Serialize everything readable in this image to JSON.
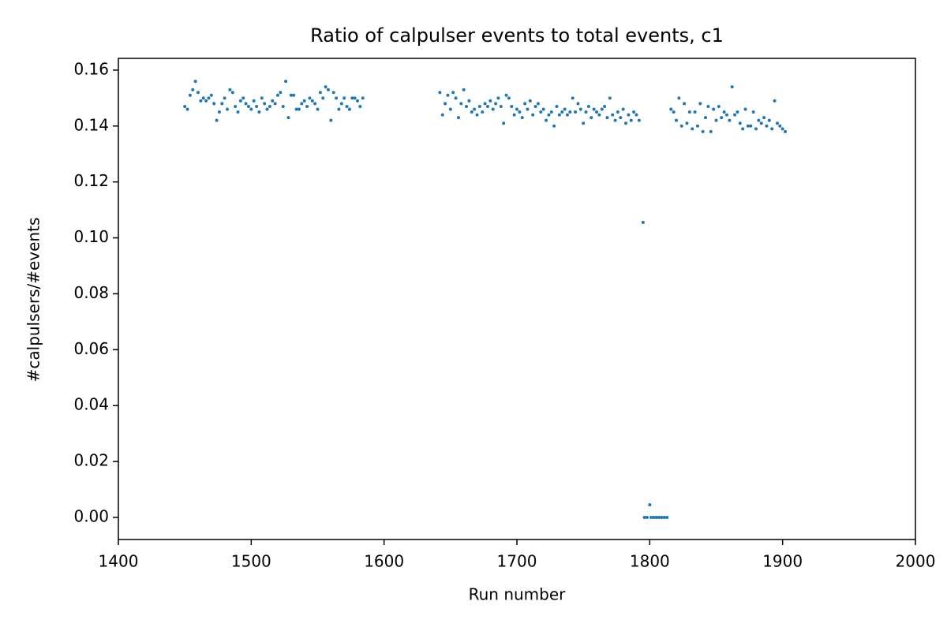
{
  "chart_data": {
    "type": "scatter",
    "title": "Ratio of calpulser events to total events, c1",
    "x_label": "Run number",
    "y_label": "#calpulsers/#events",
    "color": "#1f77b4",
    "xlim": [
      1400,
      2000
    ],
    "ylim": [
      -0.0079,
      0.1642
    ],
    "xticks": [
      1400,
      1500,
      1600,
      1700,
      1800,
      1900,
      2000
    ],
    "yticks": [
      {
        "value": 0,
        "label": "0.00"
      },
      0.02,
      0.04,
      0.06,
      0.08,
      {
        "value": 0.1,
        "label": "0.10"
      },
      0.12,
      0.14,
      0.16
    ],
    "x": [
      1450,
      1452,
      1454,
      1456,
      1458,
      1460,
      1462,
      1464,
      1466,
      1468,
      1470,
      1472,
      1474,
      1476,
      1478,
      1480,
      1482,
      1484,
      1486,
      1488,
      1490,
      1492,
      1494,
      1496,
      1498,
      1500,
      1502,
      1504,
      1506,
      1508,
      1510,
      1512,
      1514,
      1516,
      1518,
      1520,
      1522,
      1524,
      1526,
      1528,
      1530,
      1532,
      1534,
      1536,
      1538,
      1540,
      1542,
      1544,
      1546,
      1548,
      1550,
      1552,
      1554,
      1556,
      1558,
      1560,
      1562,
      1564,
      1566,
      1568,
      1570,
      1572,
      1574,
      1576,
      1578,
      1580,
      1582,
      1584,
      1642,
      1644,
      1646,
      1648,
      1650,
      1652,
      1654,
      1656,
      1658,
      1660,
      1662,
      1664,
      1666,
      1668,
      1670,
      1672,
      1674,
      1676,
      1678,
      1680,
      1682,
      1684,
      1686,
      1688,
      1690,
      1692,
      1694,
      1696,
      1698,
      1700,
      1702,
      1704,
      1706,
      1708,
      1710,
      1712,
      1714,
      1716,
      1718,
      1720,
      1722,
      1724,
      1726,
      1728,
      1730,
      1732,
      1734,
      1736,
      1738,
      1740,
      1742,
      1744,
      1746,
      1748,
      1750,
      1752,
      1754,
      1756,
      1758,
      1760,
      1762,
      1764,
      1766,
      1768,
      1770,
      1772,
      1774,
      1776,
      1778,
      1780,
      1782,
      1784,
      1786,
      1788,
      1790,
      1792,
      1795,
      1796,
      1798,
      1800,
      1801,
      1803,
      1805,
      1807,
      1809,
      1811,
      1813,
      1816,
      1818,
      1820,
      1822,
      1824,
      1826,
      1828,
      1830,
      1832,
      1834,
      1836,
      1838,
      1840,
      1842,
      1844,
      1846,
      1848,
      1850,
      1852,
      1854,
      1856,
      1858,
      1860,
      1862,
      1864,
      1866,
      1868,
      1870,
      1872,
      1874,
      1876,
      1878,
      1880,
      1882,
      1884,
      1886,
      1888,
      1890,
      1892,
      1894,
      1896,
      1898,
      1900,
      1902
    ],
    "values": [
      0.147,
      0.146,
      0.151,
      0.153,
      0.156,
      0.152,
      0.149,
      0.15,
      0.149,
      0.15,
      0.151,
      0.148,
      0.142,
      0.145,
      0.148,
      0.15,
      0.146,
      0.153,
      0.152,
      0.147,
      0.145,
      0.149,
      0.15,
      0.148,
      0.147,
      0.146,
      0.149,
      0.147,
      0.145,
      0.15,
      0.148,
      0.146,
      0.147,
      0.149,
      0.148,
      0.151,
      0.152,
      0.147,
      0.156,
      0.143,
      0.151,
      0.151,
      0.146,
      0.146,
      0.148,
      0.149,
      0.147,
      0.15,
      0.149,
      0.148,
      0.146,
      0.152,
      0.15,
      0.154,
      0.153,
      0.142,
      0.152,
      0.15,
      0.146,
      0.148,
      0.15,
      0.147,
      0.146,
      0.15,
      0.15,
      0.149,
      0.147,
      0.15,
      0.152,
      0.144,
      0.148,
      0.151,
      0.146,
      0.152,
      0.15,
      0.143,
      0.148,
      0.153,
      0.147,
      0.149,
      0.145,
      0.146,
      0.144,
      0.147,
      0.145,
      0.148,
      0.147,
      0.149,
      0.146,
      0.148,
      0.15,
      0.147,
      0.141,
      0.151,
      0.15,
      0.147,
      0.144,
      0.146,
      0.145,
      0.143,
      0.148,
      0.146,
      0.149,
      0.144,
      0.147,
      0.148,
      0.145,
      0.146,
      0.142,
      0.144,
      0.145,
      0.14,
      0.147,
      0.144,
      0.145,
      0.146,
      0.144,
      0.145,
      0.15,
      0.145,
      0.148,
      0.146,
      0.141,
      0.145,
      0.147,
      0.143,
      0.146,
      0.145,
      0.144,
      0.146,
      0.147,
      0.143,
      0.15,
      0.144,
      0.142,
      0.145,
      0.143,
      0.146,
      0.141,
      0.144,
      0.142,
      0.145,
      0.144,
      0.142,
      0.1055,
      0,
      0,
      0.0045,
      0,
      0,
      0,
      0,
      0,
      0,
      0,
      0.146,
      0.145,
      0.142,
      0.15,
      0.14,
      0.148,
      0.141,
      0.145,
      0.139,
      0.145,
      0.14,
      0.148,
      0.138,
      0.143,
      0.147,
      0.138,
      0.146,
      0.142,
      0.147,
      0.143,
      0.145,
      0.144,
      0.142,
      0.154,
      0.144,
      0.145,
      0.141,
      0.139,
      0.146,
      0.14,
      0.14,
      0.145,
      0.139,
      0.142,
      0.141,
      0.143,
      0.14,
      0.142,
      0.139,
      0.149,
      0.141,
      0.14,
      0.139,
      0.138
    ]
  }
}
